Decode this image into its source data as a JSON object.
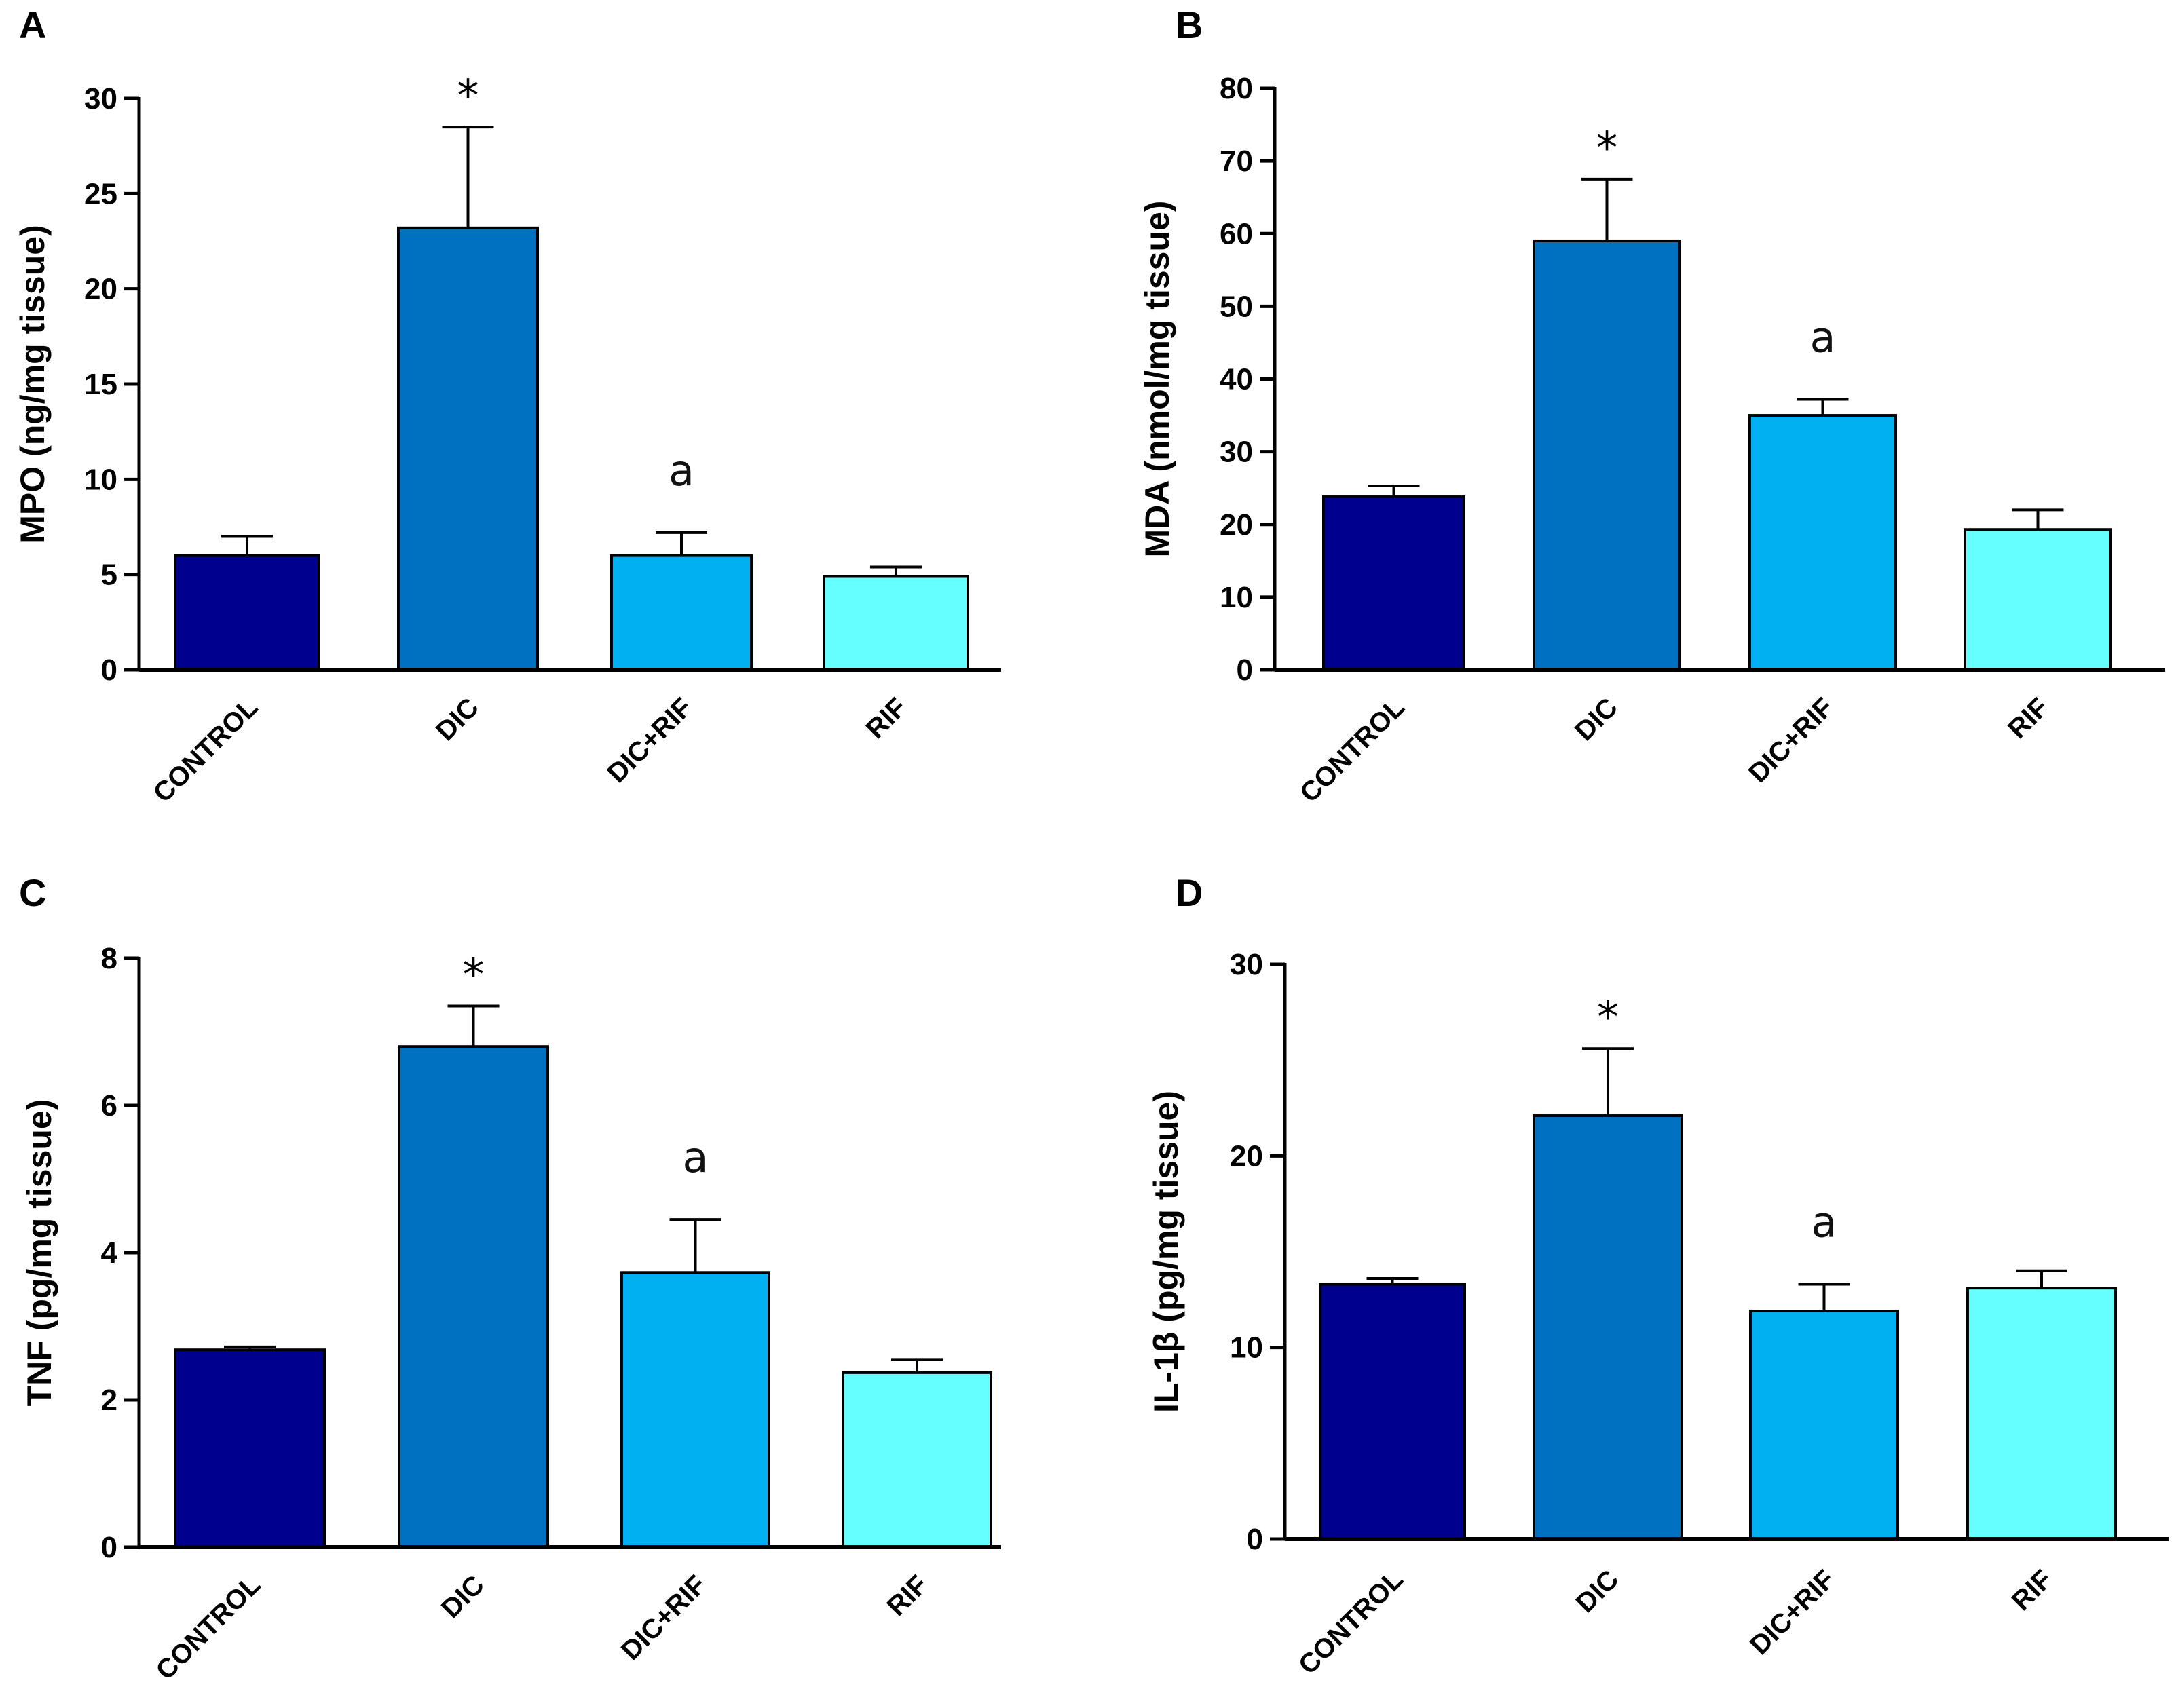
{
  "colors": {
    "CONTROL": "#00008f",
    "DIC": "#0070c0",
    "DIC+RIF": "#00b0f0",
    "RIF": "#66ffff",
    "axis": "#000000"
  },
  "chart_data": [
    {
      "panel": "A",
      "type": "bar",
      "ylabel": "MPO (ng/mg tissue)",
      "categories": [
        "CONTROL",
        "DIC",
        "DIC+RIF",
        "RIF"
      ],
      "values": [
        6.0,
        23.2,
        6.0,
        4.9
      ],
      "errors": [
        1.0,
        5.3,
        1.2,
        0.5
      ],
      "marks": [
        "",
        "*",
        "a",
        ""
      ],
      "ylim": [
        0,
        30
      ],
      "yticks": [
        0,
        5,
        10,
        15,
        20,
        25,
        30
      ]
    },
    {
      "panel": "B",
      "type": "bar",
      "ylabel": "MDA (nmol/mg tissue)",
      "categories": [
        "CONTROL",
        "DIC",
        "DIC+RIF",
        "RIF"
      ],
      "values": [
        23.8,
        59.0,
        35.0,
        19.3
      ],
      "errors": [
        1.5,
        8.5,
        2.2,
        2.7
      ],
      "marks": [
        "",
        "*",
        "a",
        ""
      ],
      "ylim": [
        0,
        80
      ],
      "yticks": [
        0,
        10,
        20,
        30,
        40,
        50,
        60,
        70,
        80
      ]
    },
    {
      "panel": "C",
      "type": "bar",
      "ylabel": "TNF (pg/mg tissue)",
      "categories": [
        "CONTROL",
        "DIC",
        "DIC+RIF",
        "RIF"
      ],
      "values": [
        2.68,
        6.8,
        3.73,
        2.37
      ],
      "errors": [
        0.04,
        0.55,
        0.72,
        0.18
      ],
      "marks": [
        "",
        "*",
        "a",
        ""
      ],
      "ylim": [
        0,
        8
      ],
      "yticks": [
        0,
        2,
        4,
        6,
        8
      ]
    },
    {
      "panel": "D",
      "type": "bar",
      "ylabel": "IL-1β (pg/mg tissue)",
      "categories": [
        "CONTROL",
        "DIC",
        "DIC+RIF",
        "RIF"
      ],
      "values": [
        13.3,
        22.1,
        11.9,
        13.1
      ],
      "errors": [
        0.3,
        3.5,
        1.4,
        0.9
      ],
      "marks": [
        "",
        "*",
        "a",
        ""
      ],
      "ylim": [
        0,
        30
      ],
      "yticks": [
        0,
        10,
        20,
        30
      ]
    }
  ]
}
